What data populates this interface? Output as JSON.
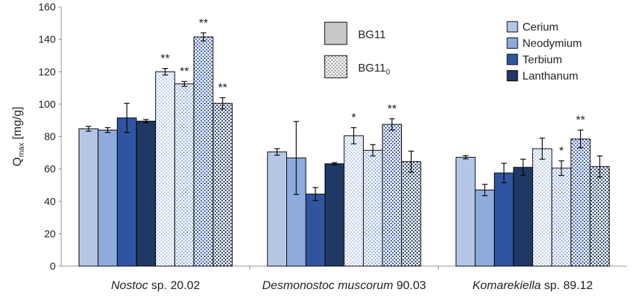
{
  "chart_data": {
    "type": "bar",
    "ylabel": "Q",
    "ylabel_sub": "max",
    "ylabel_unit": "[mg/g]",
    "ylim": [
      0,
      160
    ],
    "yticks": [
      0,
      20,
      40,
      60,
      80,
      100,
      120,
      140,
      160
    ],
    "categories": [
      {
        "italic": "Nostoc",
        "rest": " sp. 20.02"
      },
      {
        "italic": "Desmonostoc muscorum",
        "rest": " 90.03"
      },
      {
        "italic": "Komarekiella",
        "rest": " sp. 89.12"
      }
    ],
    "metals": [
      "Cerium",
      "Neodymium",
      "Terbium",
      "Lanthanum"
    ],
    "metal_colors": [
      "#b4c7e7",
      "#8faadc",
      "#2f55a0",
      "#1f3864"
    ],
    "media": [
      {
        "name": "BG11",
        "sub": ""
      },
      {
        "name": "BG11",
        "sub": "0"
      }
    ],
    "series": [
      {
        "metal": "Cerium",
        "medium": "BG11",
        "values": [
          84.8,
          70.5,
          67.2
        ],
        "errors": [
          1.5,
          2.0,
          1.0
        ],
        "sig": [
          "",
          "",
          ""
        ]
      },
      {
        "metal": "Neodymium",
        "medium": "BG11",
        "values": [
          84.0,
          66.8,
          47.0
        ],
        "errors": [
          1.5,
          22.5,
          3.5
        ],
        "sig": [
          "",
          "",
          ""
        ]
      },
      {
        "metal": "Terbium",
        "medium": "BG11",
        "values": [
          91.5,
          44.5,
          57.5
        ],
        "errors": [
          9.0,
          4.0,
          6.0
        ],
        "sig": [
          "",
          "",
          ""
        ]
      },
      {
        "metal": "Lanthanum",
        "medium": "BG11",
        "values": [
          89.5,
          63.2,
          61.0
        ],
        "errors": [
          1.0,
          0.7,
          5.0
        ],
        "sig": [
          "",
          "",
          ""
        ]
      },
      {
        "metal": "Cerium",
        "medium": "BG11_0",
        "values": [
          120.0,
          80.5,
          72.5
        ],
        "errors": [
          2.0,
          5.0,
          6.5
        ],
        "sig": [
          "**",
          "*",
          ""
        ]
      },
      {
        "metal": "Neodymium",
        "medium": "BG11_0",
        "values": [
          112.5,
          71.5,
          60.5
        ],
        "errors": [
          1.5,
          3.5,
          4.5
        ],
        "sig": [
          "**",
          "",
          "*"
        ]
      },
      {
        "metal": "Terbium",
        "medium": "BG11_0",
        "values": [
          141.5,
          87.5,
          78.5
        ],
        "errors": [
          2.5,
          3.5,
          5.5
        ],
        "sig": [
          "**",
          "**",
          "**"
        ]
      },
      {
        "metal": "Lanthanum",
        "medium": "BG11_0",
        "values": [
          100.5,
          64.5,
          61.5
        ],
        "errors": [
          3.5,
          6.5,
          6.5
        ],
        "sig": [
          "**",
          "",
          ""
        ]
      }
    ]
  }
}
